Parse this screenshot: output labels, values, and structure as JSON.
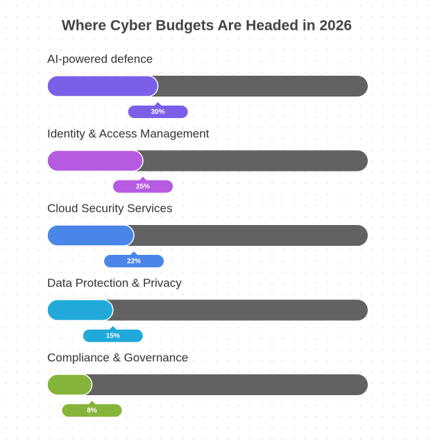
{
  "chart_data": {
    "type": "bar",
    "orientation": "horizontal",
    "title": "Where Cyber Budgets Are Headed in 2026",
    "categories": [
      "AI-powered defence",
      "Identity & Access Management",
      "Cloud Security Services",
      "Data Protection & Privacy",
      "Compliance & Governance"
    ],
    "values": [
      30,
      25,
      22,
      15,
      8
    ],
    "value_labels": [
      "30%",
      "25%",
      "22%",
      "15%",
      "8%"
    ],
    "colors": [
      "#7b5fe8",
      "#b65ae2",
      "#4a86e8",
      "#20a9d9",
      "#86b43b"
    ],
    "track_color": "#626262",
    "xlim": [
      0,
      100
    ]
  }
}
